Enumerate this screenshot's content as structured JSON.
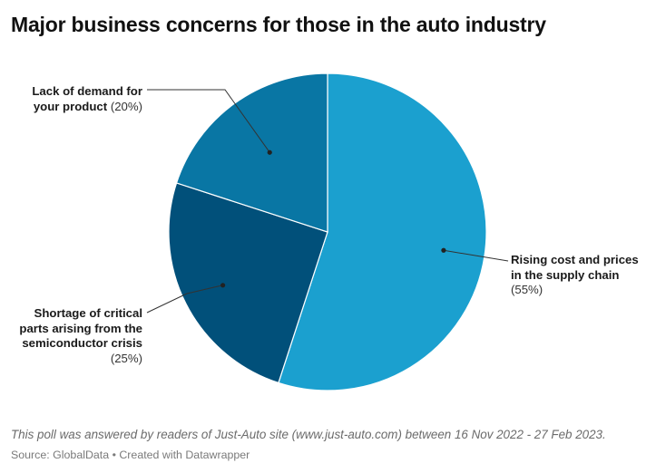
{
  "chart_data": {
    "type": "pie",
    "title": "Major business concerns for those in the auto industry",
    "slices": [
      {
        "name_lines": [
          "Rising cost and prices",
          "in the supply chain"
        ],
        "value": 55,
        "label": "(55%)",
        "color": "#1ba0cf"
      },
      {
        "name_lines": [
          "Shortage of critical",
          "parts arising from the",
          "semiconductor crisis"
        ],
        "value": 25,
        "label": "(25%)",
        "color": "#01507a"
      },
      {
        "name_lines": [
          "Lack of demand for",
          "your product"
        ],
        "value": 20,
        "label": "(20%)",
        "color": "#0976a4"
      }
    ]
  },
  "footer": {
    "note": "This poll was answered by readers of Just-Auto site (www.just-auto.com) between 16 Nov 2022 - 27 Feb 2023.",
    "source": "Source: GlobalData • Created with Datawrapper"
  }
}
